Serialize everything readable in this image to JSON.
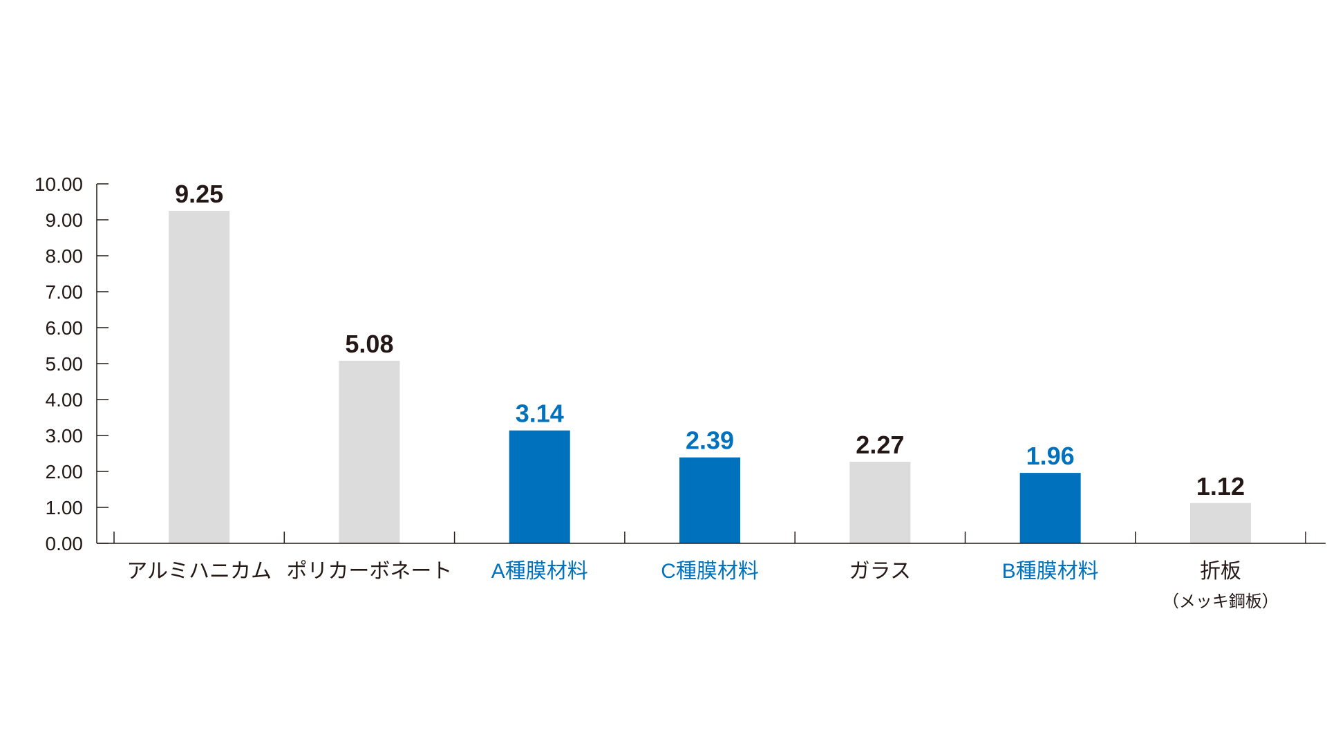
{
  "chart_data": {
    "type": "bar",
    "title": "",
    "xlabel": "",
    "ylabel": "",
    "ylim": [
      0,
      10
    ],
    "y_ticks": [
      "0.00",
      "1.00",
      "2.00",
      "3.00",
      "4.00",
      "5.00",
      "6.00",
      "7.00",
      "8.00",
      "9.00",
      "10.00"
    ],
    "grid": false,
    "legend": "none",
    "categories": [
      {
        "label": "アルミハニカム",
        "sublabel": "",
        "highlight": false
      },
      {
        "label": "ポリカーボネート",
        "sublabel": "",
        "highlight": false
      },
      {
        "label": "A種膜材料",
        "sublabel": "",
        "highlight": true
      },
      {
        "label": "C種膜材料",
        "sublabel": "",
        "highlight": true
      },
      {
        "label": "ガラス",
        "sublabel": "",
        "highlight": false
      },
      {
        "label": "B種膜材料",
        "sublabel": "",
        "highlight": true
      },
      {
        "label": "折板",
        "sublabel": "（メッキ鋼板）",
        "highlight": false
      }
    ],
    "values": [
      9.25,
      5.08,
      3.14,
      2.39,
      2.27,
      1.96,
      1.12
    ],
    "value_labels": [
      "9.25",
      "5.08",
      "3.14",
      "2.39",
      "2.27",
      "1.96",
      "1.12"
    ],
    "colors": {
      "default_bar": "#dcdcdc",
      "highlight_bar": "#0071bc",
      "default_text": "#231815",
      "highlight_text": "#0071bc",
      "axis": "#231815"
    }
  }
}
